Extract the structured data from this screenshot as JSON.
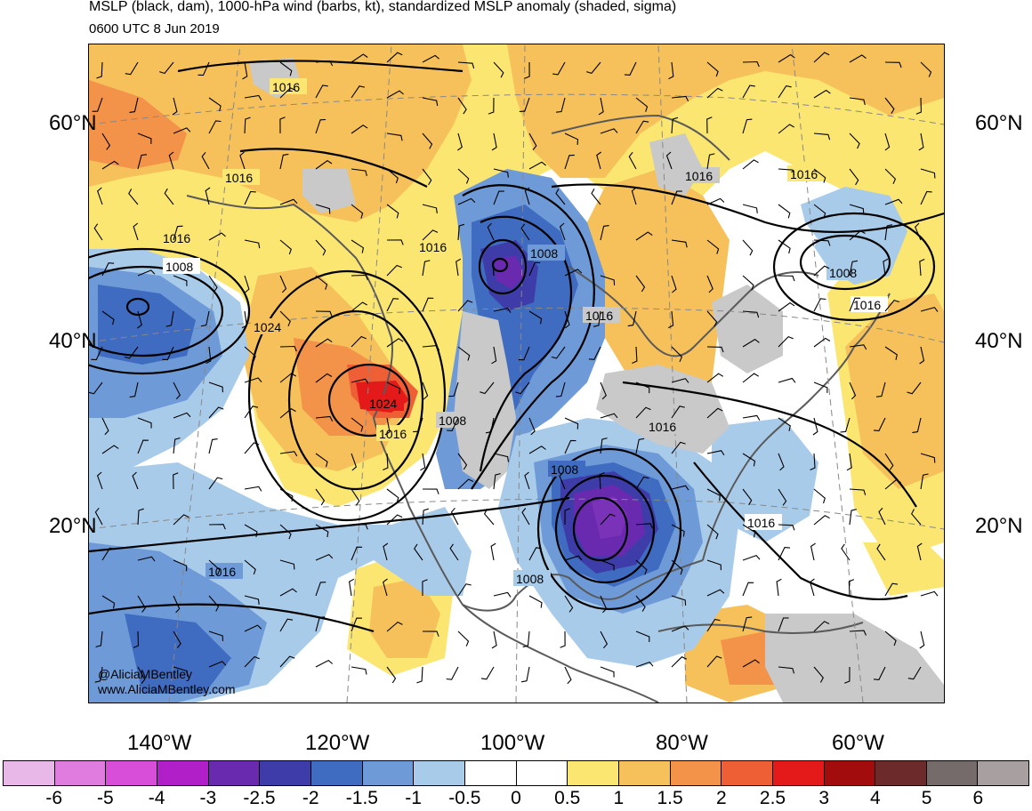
{
  "header": {
    "title": "MSLP (black, dam), 1000-hPa wind (barbs, kt), standardized MSLP anomaly (shaded, sigma)",
    "valid_time": "0600 UTC 8 Jun 2019"
  },
  "map": {
    "lat_labels": [
      "60°N",
      "40°N",
      "20°N"
    ],
    "lon_labels": [
      "140°W",
      "120°W",
      "100°W",
      "80°W",
      "60°W"
    ],
    "isobar_labels": [
      "1016",
      "1016",
      "1016",
      "1016",
      "1008",
      "1024",
      "1024",
      "1016",
      "1008",
      "1016",
      "1008",
      "1016",
      "1016",
      "1008",
      "1008",
      "1016",
      "1016",
      "1016",
      "1008",
      "1016"
    ],
    "credit_line1": "@AliciaMBentley",
    "credit_line2": "www.AliciaMBentley.com"
  },
  "colorbar": {
    "labels": [
      "-6",
      "-5",
      "-4",
      "-3",
      "-2.5",
      "-2",
      "-1.5",
      "-1",
      "-0.5",
      "0",
      "0.5",
      "1",
      "1.5",
      "2",
      "2.5",
      "3",
      "4",
      "5",
      "6"
    ],
    "colors": [
      "#e8b8e8",
      "#e07be0",
      "#d84ed8",
      "#b01fc8",
      "#6a2ab0",
      "#3e3ca8",
      "#3f6cc0",
      "#6e9bd8",
      "#a9cbea",
      "#ffffff",
      "#ffffff",
      "#fbe672",
      "#f6c15a",
      "#f39249",
      "#ee5f35",
      "#e41a1a",
      "#a30c0c",
      "#6d2a2a",
      "#756b6b",
      "#a8a0a0"
    ]
  },
  "palette": {
    "land_gray": "#c9c9c9",
    "coast": "#5a5a5a",
    "grid": "#888888"
  }
}
